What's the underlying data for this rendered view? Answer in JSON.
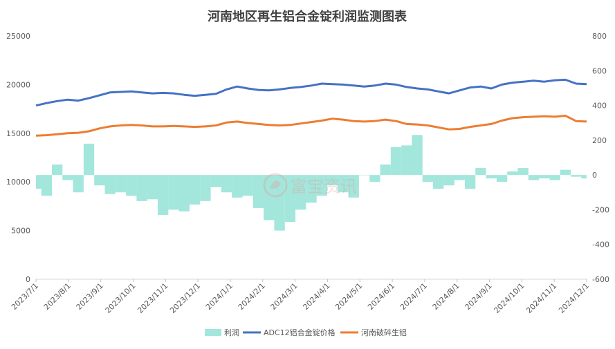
{
  "chart_data": {
    "type": "line",
    "title": "河南地区再生铝合金锭利润监测图表",
    "x": [
      "2023/7/1",
      "2023/7/11",
      "2023/7/21",
      "2023/8/1",
      "2023/8/11",
      "2023/8/21",
      "2023/9/1",
      "2023/9/11",
      "2023/9/21",
      "2023/10/1",
      "2023/10/11",
      "2023/10/21",
      "2023/11/1",
      "2023/11/11",
      "2023/11/21",
      "2023/12/1",
      "2023/12/11",
      "2023/12/21",
      "2024/1/1",
      "2024/1/11",
      "2024/1/21",
      "2024/2/1",
      "2024/2/11",
      "2024/2/21",
      "2024/3/1",
      "2024/3/11",
      "2024/3/21",
      "2024/4/1",
      "2024/4/11",
      "2024/4/21",
      "2024/5/1",
      "2024/5/11",
      "2024/5/21",
      "2024/6/1",
      "2024/6/11",
      "2024/6/21",
      "2024/7/1",
      "2024/7/11",
      "2024/7/21",
      "2024/8/1",
      "2024/8/11",
      "2024/8/21",
      "2024/9/1",
      "2024/9/11",
      "2024/9/21",
      "2024/10/1",
      "2024/10/11",
      "2024/10/21",
      "2024/11/1",
      "2024/11/11",
      "2024/11/21",
      "2024/12/1",
      "2024/12/11"
    ],
    "x_ticks": [
      "2023/7/1",
      "2023/8/1",
      "2023/9/1",
      "2023/10/1",
      "2023/11/1",
      "2023/12/1",
      "2024/1/1",
      "2024/2/1",
      "2024/3/1",
      "2024/4/1",
      "2024/5/1",
      "2024/6/1",
      "2024/7/1",
      "2024/8/1",
      "2024/9/1",
      "2024/10/1",
      "2024/11/1",
      "2024/12/1"
    ],
    "y_left_ticks": [
      "0",
      "5000",
      "10000",
      "15000",
      "20000",
      "25000"
    ],
    "y_right_ticks": [
      "-600",
      "-400",
      "-200",
      "0",
      "200",
      "400",
      "600",
      "800"
    ],
    "ylim_left": [
      0,
      25000
    ],
    "ylim_right": [
      -600,
      800
    ],
    "grid": "none",
    "legend_position": "bottom",
    "series": [
      {
        "name": "利润",
        "type": "area",
        "axis": "right",
        "color": "#a3e6dc",
        "values": [
          -80,
          -120,
          60,
          -30,
          -100,
          180,
          -60,
          -110,
          -100,
          -120,
          -150,
          -140,
          -230,
          -200,
          -210,
          -170,
          -150,
          -70,
          -100,
          -130,
          -120,
          -190,
          -260,
          -320,
          -270,
          -200,
          -160,
          -120,
          -60,
          -100,
          -130,
          0,
          -40,
          60,
          160,
          170,
          230,
          -40,
          -80,
          -60,
          -30,
          -80,
          40,
          -20,
          -40,
          20,
          40,
          -30,
          -20,
          -30,
          30,
          -10,
          -20
        ]
      },
      {
        "name": "ADC12铝合金锭价格",
        "type": "line",
        "axis": "left",
        "color": "#4472c4",
        "values": [
          17850,
          18100,
          18300,
          18450,
          18350,
          18600,
          18900,
          19200,
          19250,
          19300,
          19200,
          19100,
          19150,
          19100,
          18950,
          18850,
          18950,
          19050,
          19500,
          19800,
          19600,
          19450,
          19400,
          19500,
          19650,
          19750,
          19900,
          20100,
          20050,
          20000,
          19900,
          19800,
          19900,
          20100,
          20000,
          19750,
          19600,
          19500,
          19300,
          19100,
          19400,
          19700,
          19800,
          19600,
          20000,
          20200,
          20300,
          20400,
          20300,
          20450,
          20500,
          20100,
          20050
        ]
      },
      {
        "name": "河南破碎生铝",
        "type": "line",
        "axis": "left",
        "color": "#ed7d31",
        "values": [
          14750,
          14800,
          14900,
          15000,
          15050,
          15200,
          15500,
          15700,
          15800,
          15850,
          15800,
          15700,
          15700,
          15750,
          15700,
          15650,
          15700,
          15800,
          16100,
          16200,
          16050,
          15950,
          15850,
          15800,
          15850,
          16000,
          16150,
          16300,
          16500,
          16400,
          16250,
          16200,
          16250,
          16400,
          16250,
          15950,
          15900,
          15800,
          15600,
          15400,
          15450,
          15650,
          15800,
          15950,
          16300,
          16550,
          16650,
          16700,
          16750,
          16700,
          16800,
          16250,
          16200
        ]
      }
    ]
  },
  "watermark": "富宝资讯",
  "colors": {
    "axis_text": "#595959",
    "title": "#404040"
  }
}
